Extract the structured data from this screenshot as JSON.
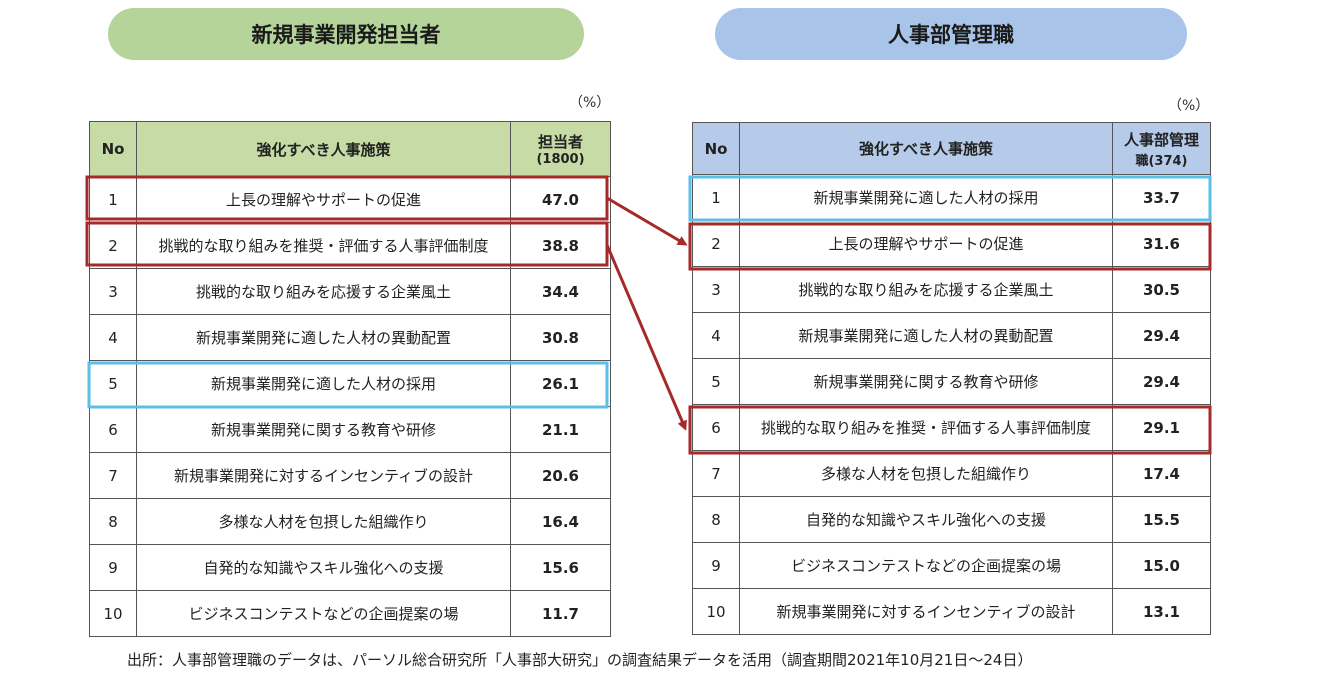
{
  "left": {
    "title": "新規事業開発担当者",
    "unit": "（%）",
    "header": {
      "no": "No",
      "measure": "強化すべき人事施策",
      "col_line1": "担当者",
      "col_line2": "(1800)"
    },
    "rows": [
      {
        "no": "1",
        "measure": "上長の理解やサポートの促進",
        "value": "47.0"
      },
      {
        "no": "2",
        "measure": "挑戦的な取り組みを推奨・評価する人事評価制度",
        "value": "38.8"
      },
      {
        "no": "3",
        "measure": "挑戦的な取り組みを応援する企業風土",
        "value": "34.4"
      },
      {
        "no": "4",
        "measure": "新規事業開発に適した人材の異動配置",
        "value": "30.8"
      },
      {
        "no": "5",
        "measure": "新規事業開発に適した人材の採用",
        "value": "26.1"
      },
      {
        "no": "6",
        "measure": "新規事業開発に関する教育や研修",
        "value": "21.1"
      },
      {
        "no": "7",
        "measure": "新規事業開発に対するインセンティブの設計",
        "value": "20.6"
      },
      {
        "no": "8",
        "measure": "多様な人材を包摂した組織作り",
        "value": "16.4"
      },
      {
        "no": "9",
        "measure": "自発的な知識やスキル強化への支援",
        "value": "15.6"
      },
      {
        "no": "10",
        "measure": "ビジネスコンテストなどの企画提案の場",
        "value": "11.7"
      }
    ]
  },
  "right": {
    "title": "人事部管理職",
    "unit": "（%）",
    "header": {
      "no": "No",
      "measure": "強化すべき人事施策",
      "col_line1": "人事部管理",
      "col_line2": "職(374)"
    },
    "rows": [
      {
        "no": "1",
        "measure": "新規事業開発に適した人材の採用",
        "value": "33.7"
      },
      {
        "no": "2",
        "measure": "上長の理解やサポートの促進",
        "value": "31.6"
      },
      {
        "no": "3",
        "measure": "挑戦的な取り組みを応援する企業風土",
        "value": "30.5"
      },
      {
        "no": "4",
        "measure": "新規事業開発に適した人材の異動配置",
        "value": "29.4"
      },
      {
        "no": "5",
        "measure": "新規事業開発に関する教育や研修",
        "value": "29.4"
      },
      {
        "no": "6",
        "measure": "挑戦的な取り組みを推奨・評価する人事評価制度",
        "value": "29.1"
      },
      {
        "no": "7",
        "measure": "多様な人材を包摂した組織作り",
        "value": "17.4"
      },
      {
        "no": "8",
        "measure": "自発的な知識やスキル強化への支援",
        "value": "15.5"
      },
      {
        "no": "9",
        "measure": "ビジネスコンテストなどの企画提案の場",
        "value": "15.0"
      },
      {
        "no": "10",
        "measure": "新規事業開発に対するインセンティブの設計",
        "value": "13.1"
      }
    ]
  },
  "footer": "出所：人事部管理職のデータは、パーソル総合研究所「人事部大研究」の調査結果データを活用（調査期間2021年10月21日～24日）",
  "colors": {
    "left_header": "#c6dba6",
    "right_header": "#b5cbe9",
    "highlight_red": "#a52a2a",
    "highlight_blue": "#5bbfe8"
  }
}
